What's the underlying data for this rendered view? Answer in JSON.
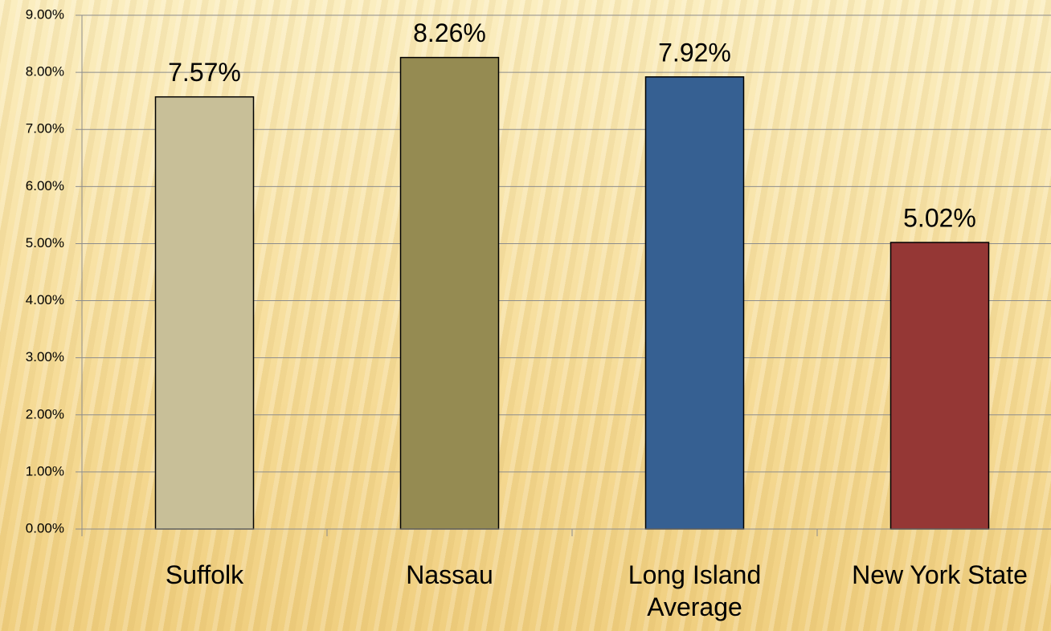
{
  "chart_data": {
    "type": "bar",
    "categories": [
      "Suffolk",
      "Nassau",
      "Long Island Average",
      "New York State"
    ],
    "values": [
      7.57,
      8.26,
      7.92,
      5.02
    ],
    "value_labels": [
      "7.57%",
      "8.26%",
      "7.92%",
      "5.02%"
    ],
    "colors": [
      "#c8bf98",
      "#958b52",
      "#366092",
      "#953735"
    ],
    "ylim": [
      0,
      9
    ],
    "yticks": [
      {
        "value": 0,
        "label": "0.00%"
      },
      {
        "value": 1,
        "label": "1.00%"
      },
      {
        "value": 2,
        "label": "2.00%"
      },
      {
        "value": 3,
        "label": "3.00%"
      },
      {
        "value": 4,
        "label": "4.00%"
      },
      {
        "value": 5,
        "label": "5.00%"
      },
      {
        "value": 6,
        "label": "6.00%"
      },
      {
        "value": 7,
        "label": "7.00%"
      },
      {
        "value": 8,
        "label": "8.00%"
      },
      {
        "value": 9,
        "label": "9.00%"
      }
    ],
    "grid": true
  }
}
